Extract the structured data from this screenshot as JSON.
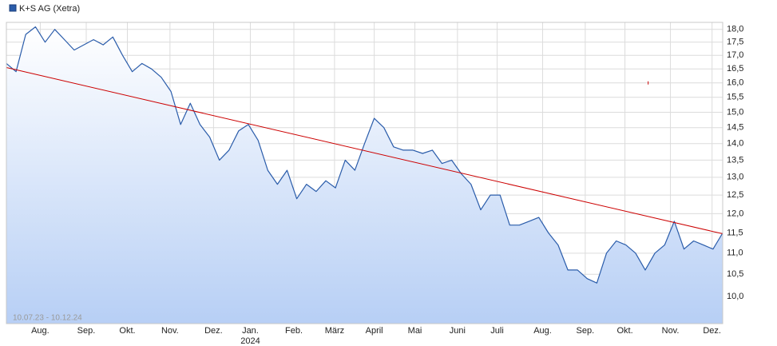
{
  "chart_data": {
    "type": "line",
    "series": [
      {
        "name": "K+S AG (Xetra)",
        "color": "#2a5caa",
        "values": [
          16.7,
          16.4,
          17.8,
          18.1,
          17.5,
          18.0,
          17.6,
          17.2,
          17.4,
          17.6,
          17.4,
          17.7,
          17.0,
          16.4,
          16.7,
          16.5,
          16.2,
          15.7,
          14.6,
          15.3,
          14.6,
          14.2,
          13.5,
          13.8,
          14.4,
          14.6,
          14.1,
          13.2,
          12.8,
          13.2,
          12.4,
          12.8,
          12.6,
          12.9,
          12.7,
          13.5,
          13.2,
          14.0,
          14.8,
          14.5,
          13.9,
          13.8,
          13.8,
          13.7,
          13.8,
          13.4,
          13.5,
          13.1,
          12.8,
          12.1,
          12.5,
          12.5,
          11.7,
          11.7,
          11.8,
          11.9,
          11.5,
          11.2,
          10.6,
          10.6,
          10.4,
          10.3,
          11.0,
          11.3,
          11.2,
          11.0,
          10.6,
          11.0,
          11.2,
          11.8,
          11.1,
          11.3,
          11.2,
          11.1,
          11.5
        ]
      }
    ],
    "trendline": {
      "color": "#cc0000",
      "x": [
        0,
        74
      ],
      "values": [
        16.55,
        11.48
      ]
    },
    "markers": [
      {
        "x": 66.3,
        "value": 16.0,
        "color": "#cc0000"
      }
    ],
    "xlim": [
      0,
      74
    ],
    "xticks": [
      {
        "value": 3.5,
        "label": "Aug."
      },
      {
        "value": 8.25,
        "label": "Sep."
      },
      {
        "value": 12.5,
        "label": "Okt."
      },
      {
        "value": 16.9,
        "label": "Nov."
      },
      {
        "value": 21.4,
        "label": "Dez."
      },
      {
        "value": 25.2,
        "label": "Jan."
      },
      {
        "value": 29.7,
        "label": "Feb."
      },
      {
        "value": 33.9,
        "label": "März"
      },
      {
        "value": 38.0,
        "label": "April"
      },
      {
        "value": 42.2,
        "label": "Mai"
      },
      {
        "value": 46.6,
        "label": "Juni"
      },
      {
        "value": 50.7,
        "label": "Juli"
      },
      {
        "value": 55.4,
        "label": "Aug."
      },
      {
        "value": 59.8,
        "label": "Sep."
      },
      {
        "value": 63.9,
        "label": "Okt."
      },
      {
        "value": 68.6,
        "label": "Nov."
      },
      {
        "value": 72.9,
        "label": "Dez."
      }
    ],
    "year_labels": [
      {
        "value": 25.2,
        "label": "2024"
      }
    ],
    "ylim": [
      9.42,
      18.28
    ],
    "log_scale": true,
    "grid": true,
    "yticks": [
      {
        "value": 10,
        "label": "10,0"
      },
      {
        "value": 10.5,
        "label": "10,5"
      },
      {
        "value": 11,
        "label": "11,0"
      },
      {
        "value": 11.5,
        "label": "11,5"
      },
      {
        "value": 12,
        "label": "12,0"
      },
      {
        "value": 12.5,
        "label": "12,5"
      },
      {
        "value": 13,
        "label": "13,0"
      },
      {
        "value": 13.5,
        "label": "13,5"
      },
      {
        "value": 14,
        "label": "14,0"
      },
      {
        "value": 14.5,
        "label": "14,5"
      },
      {
        "value": 15,
        "label": "15,0"
      },
      {
        "value": 15.5,
        "label": "15,5"
      },
      {
        "value": 16,
        "label": "16,0"
      },
      {
        "value": 16.5,
        "label": "16,5"
      },
      {
        "value": 17,
        "label": "17,0"
      },
      {
        "value": 17.5,
        "label": "17,5"
      },
      {
        "value": 18,
        "label": "18,0"
      }
    ],
    "range_label": "10.07.23 - 10.12.24"
  }
}
